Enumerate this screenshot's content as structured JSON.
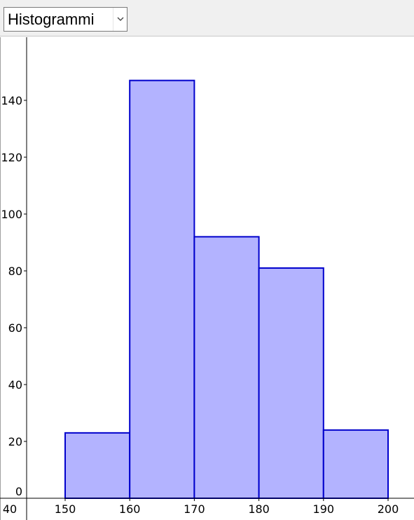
{
  "toolbar": {
    "view_select": {
      "value": "Histogrammi"
    }
  },
  "colors": {
    "bar_fill": "#b3b3ff",
    "bar_stroke": "#0000cc",
    "axis": "#000000",
    "toolbar_bg": "#f0f0f0"
  },
  "icons": {
    "dropdown": "chevron-down-icon"
  },
  "chart_data": {
    "type": "bar",
    "histogram": true,
    "bins": [
      {
        "x0": 150,
        "x1": 160,
        "value": 23
      },
      {
        "x0": 160,
        "x1": 170,
        "value": 147
      },
      {
        "x0": 170,
        "x1": 180,
        "value": 92
      },
      {
        "x0": 180,
        "x1": 190,
        "value": 81
      },
      {
        "x0": 190,
        "x1": 200,
        "value": 24
      }
    ],
    "title": "",
    "xlabel": "",
    "ylabel": "",
    "x_ticks": [
      40,
      150,
      160,
      170,
      180,
      190,
      200
    ],
    "y_ticks": [
      0,
      20,
      40,
      60,
      80,
      100,
      120,
      140
    ],
    "ylim": [
      0,
      160
    ],
    "grid": false,
    "legend": "none"
  }
}
